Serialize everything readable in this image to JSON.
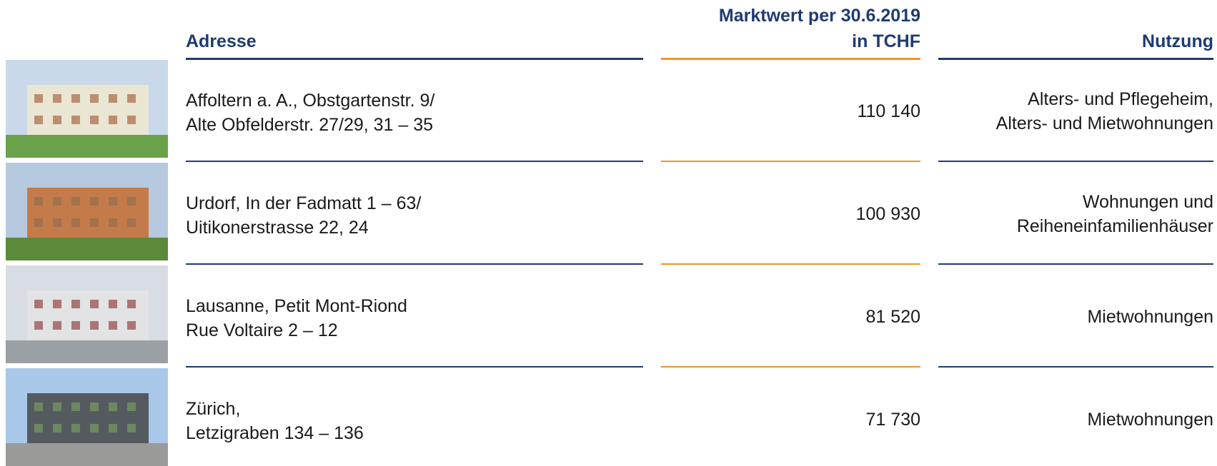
{
  "header": {
    "address": "Adresse",
    "value": [
      "Marktwert per 30.6.2019",
      "in TCHF"
    ],
    "usage": "Nutzung"
  },
  "rows": [
    {
      "address": [
        "Affoltern a. A., Obstgartenstr. 9/",
        "Alte Obfelderstr. 27/29, 31 – 35"
      ],
      "value": "110 140",
      "usage": [
        "Alters- und Pflegeheim,",
        "Alters- und Mietwohnungen"
      ]
    },
    {
      "address": [
        "Urdorf, In der Fadmatt 1 – 63/",
        "Uitikonerstrasse 22, 24"
      ],
      "value": "100 930",
      "usage": [
        "Wohnungen und",
        "Reiheneinfamilienhäuser"
      ]
    },
    {
      "address": [
        "Lausanne, Petit Mont-Riond",
        "Rue Voltaire 2 – 12"
      ],
      "value": "81 520",
      "usage": [
        "Mietwohnungen"
      ]
    },
    {
      "address": [
        "Zürich,",
        "Letzigraben 134 – 136"
      ],
      "value": "71 730",
      "usage": [
        "Mietwohnungen"
      ]
    }
  ]
}
